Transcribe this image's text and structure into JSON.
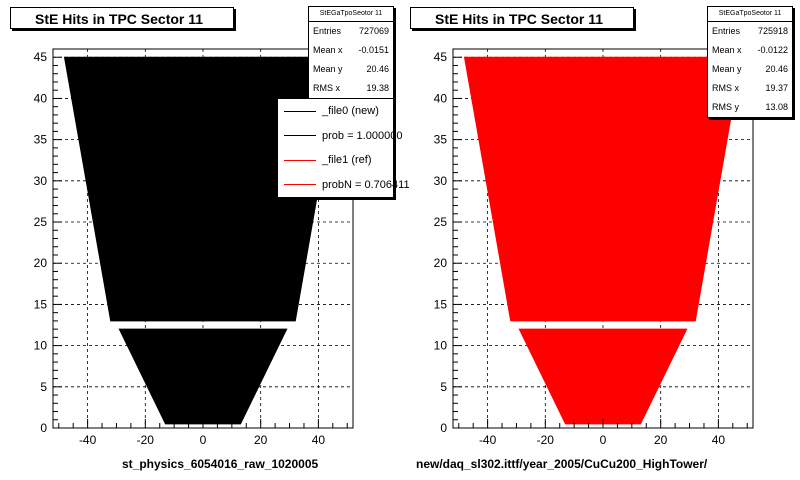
{
  "panels": [
    {
      "title": "StE Hits in TPC Sector 11",
      "fill": "#000000",
      "footer": "st_physics_6054016_raw_1020005",
      "stats": {
        "header": "StEGaTpoSeotor 11",
        "rows": [
          {
            "label": "Entries",
            "value": "727069"
          },
          {
            "label": "Mean x",
            "value": "-0.0151"
          },
          {
            "label": "Mean y",
            "value": "20.46"
          },
          {
            "label": "RMS x",
            "value": "19.38"
          }
        ]
      },
      "legend": [
        {
          "label": "_file0 (new)",
          "color": "#000000"
        },
        {
          "label": "prob = 1.000000",
          "color": "#000000"
        },
        {
          "label": "_file1 (ref)",
          "color": "#ff0000"
        },
        {
          "label": "probN = 0.706411",
          "color": "#ff0000"
        }
      ]
    },
    {
      "title": "StE Hits in TPC Sector 11",
      "fill": "#ff0000",
      "footer": "new/daq_sl302.ittf/year_2005/CuCu200_HighTower/",
      "stats": {
        "header": "StEGaTpoSeotor 11",
        "rows": [
          {
            "label": "Entries",
            "value": "725918"
          },
          {
            "label": "Mean x",
            "value": "-0.0122"
          },
          {
            "label": "Mean y",
            "value": "20.46"
          },
          {
            "label": "RMS x",
            "value": "19.37"
          },
          {
            "label": "RMS y",
            "value": "13.08"
          }
        ]
      }
    }
  ],
  "chart_data": [
    {
      "type": "heatmap",
      "title": "StE Hits in TPC Sector 11",
      "xlim": [
        -52,
        52
      ],
      "ylim": [
        0,
        46
      ],
      "xticks": [
        -40,
        -20,
        0,
        20,
        40
      ],
      "yticks": [
        0,
        5,
        10,
        15,
        20,
        25,
        30,
        35,
        40,
        45
      ],
      "grid": true,
      "color": "#000000",
      "region": {
        "outer_sector": {
          "y_range": [
            13,
            45
          ],
          "half_width_at_y_min": 32,
          "half_width_at_y_max": 48
        },
        "inner_sector": {
          "y_range": [
            0.5,
            12
          ],
          "half_width_at_y_min": 13,
          "half_width_at_y_max": 29
        },
        "gap_y": [
          12,
          13
        ]
      },
      "entries": 727069,
      "mean_x": -0.0151,
      "mean_y": 20.46,
      "rms_x": 19.38
    },
    {
      "type": "heatmap",
      "title": "StE Hits in TPC Sector 11",
      "xlim": [
        -52,
        52
      ],
      "ylim": [
        0,
        46
      ],
      "xticks": [
        -40,
        -20,
        0,
        20,
        40
      ],
      "yticks": [
        0,
        5,
        10,
        15,
        20,
        25,
        30,
        35,
        40,
        45
      ],
      "grid": true,
      "color": "#ff0000",
      "region": {
        "outer_sector": {
          "y_range": [
            13,
            45
          ],
          "half_width_at_y_min": 32,
          "half_width_at_y_max": 48
        },
        "inner_sector": {
          "y_range": [
            0.5,
            12
          ],
          "half_width_at_y_min": 13,
          "half_width_at_y_max": 29
        },
        "gap_y": [
          12,
          13
        ]
      },
      "entries": 725918,
      "mean_x": -0.0122,
      "mean_y": 20.46,
      "rms_x": 19.37,
      "rms_y": 13.08
    }
  ]
}
